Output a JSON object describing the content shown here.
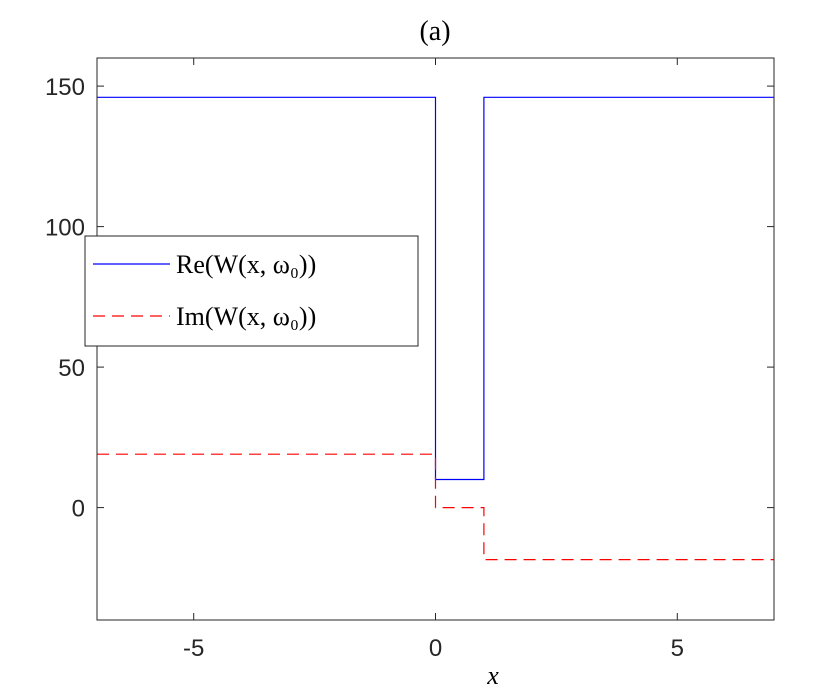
{
  "chart_data": {
    "type": "line",
    "title": "(a)",
    "xlabel": "x",
    "ylabel": "",
    "xlim": [
      -7,
      7
    ],
    "ylim": [
      -40,
      160
    ],
    "xticks": [
      -5,
      0,
      5
    ],
    "xtick_labels": [
      "-5",
      "0",
      "5"
    ],
    "yticks": [
      0,
      50,
      100,
      150
    ],
    "ytick_labels": [
      "0",
      "50",
      "100",
      "150"
    ],
    "grid": false,
    "legend_position": "left",
    "series": [
      {
        "name": "Re(W(x, ω₀))",
        "color": "#0000ff",
        "dash": "solid",
        "x": [
          -7,
          0,
          0,
          1,
          1,
          7
        ],
        "y": [
          146,
          146,
          10,
          10,
          146,
          146
        ]
      },
      {
        "name": "Im(W(x, ω₀))",
        "color": "#ff0000",
        "dash": "dashed",
        "x": [
          -7,
          0,
          0,
          1,
          1,
          7
        ],
        "y": [
          19,
          19,
          0,
          0,
          -18.5,
          -18.5
        ]
      }
    ]
  }
}
